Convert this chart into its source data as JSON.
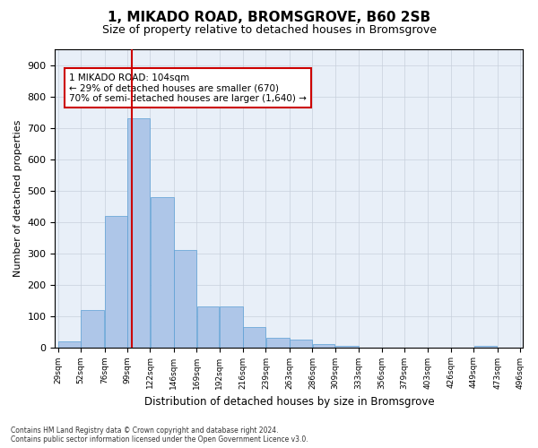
{
  "title": "1, MIKADO ROAD, BROMSGROVE, B60 2SB",
  "subtitle": "Size of property relative to detached houses in Bromsgrove",
  "xlabel": "Distribution of detached houses by size in Bromsgrove",
  "ylabel": "Number of detached properties",
  "bar_color": "#aec6e8",
  "bar_edge_color": "#5a9fd4",
  "property_line_x": 104,
  "annotation_text": "1 MIKADO ROAD: 104sqm\n← 29% of detached houses are smaller (670)\n70% of semi-detached houses are larger (1,640) →",
  "bin_edges": [
    29,
    52,
    76,
    99,
    122,
    146,
    169,
    192,
    216,
    239,
    263,
    286,
    309,
    333,
    356,
    379,
    403,
    426,
    449,
    473,
    496
  ],
  "bar_heights": [
    20,
    120,
    420,
    730,
    480,
    310,
    130,
    130,
    65,
    30,
    25,
    10,
    5,
    0,
    0,
    0,
    0,
    0,
    5,
    0
  ],
  "ylim": [
    0,
    950
  ],
  "yticks": [
    0,
    100,
    200,
    300,
    400,
    500,
    600,
    700,
    800,
    900
  ],
  "footnote": "Contains HM Land Registry data © Crown copyright and database right 2024.\nContains public sector information licensed under the Open Government Licence v3.0.",
  "background_color": "#ffffff",
  "plot_bg_color": "#e8eff8",
  "grid_color": "#c8d0dc",
  "annotation_box_color": "#ffffff",
  "annotation_box_edge_color": "#cc0000",
  "property_line_color": "#cc0000"
}
